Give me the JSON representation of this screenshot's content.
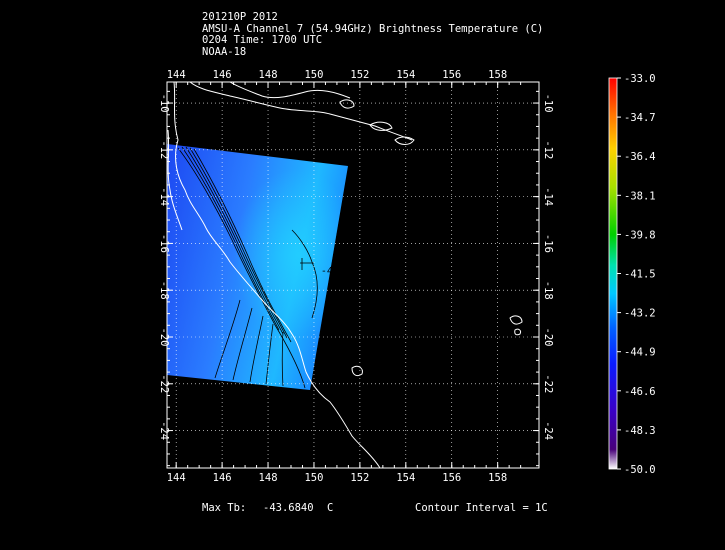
{
  "header": {
    "line1": "201210P 2012",
    "line2": "AMSU-A Channel 7 (54.94GHz) Brightness Temperature (C)",
    "line3": "0204 Time: 1700 UTC",
    "line4": "NOAA-18"
  },
  "footer": {
    "max_tb_label": "Max Tb:",
    "max_tb_value": "-43.6840",
    "max_tb_unit": "C",
    "contour_interval": "Contour Interval = 1C"
  },
  "map": {
    "lon_ticks": [
      "144",
      "146",
      "148",
      "150",
      "152",
      "154",
      "156",
      "158"
    ],
    "lat_ticks_left": [
      "-10",
      "-12",
      "-14",
      "-16",
      "-18",
      "-20",
      "-22",
      "-24"
    ],
    "lat_ticks_right": [
      "-10",
      "-12",
      "-14",
      "-16",
      "-18",
      "-20",
      "-22",
      "-24"
    ],
    "lon_values": [
      144,
      146,
      148,
      150,
      152,
      154,
      156,
      158
    ],
    "lat_values": [
      -10,
      -12,
      -14,
      -16,
      -18,
      -20,
      -22,
      -24
    ],
    "lon_range": [
      143.6,
      159.8
    ],
    "lat_range": [
      -9.1,
      -25.6
    ],
    "contour_label": "-44",
    "contour_label_lon": 150.3,
    "contour_label_lat": -17.3,
    "grid": true
  },
  "colorbar": {
    "labels": [
      "-33.0",
      "-34.7",
      "-36.4",
      "-38.1",
      "-39.8",
      "-41.5",
      "-43.2",
      "-44.9",
      "-46.6",
      "-48.3",
      "-50.0"
    ],
    "range": [
      -50.0,
      -33.0
    ],
    "colors": [
      "#ffffff",
      "#3a0060",
      "#3a00c0",
      "#0a1cff",
      "#0060ff",
      "#00c8ff",
      "#00e0a0",
      "#00d000",
      "#b0e000",
      "#ffd000",
      "#ff7000",
      "#ff0000"
    ]
  },
  "colors": {
    "swath_inner": "#2a86ff",
    "swath_edge": "#1c3cf0",
    "swath_warm": "#20c4ff",
    "background": "#000000",
    "lines": "#ffffff"
  }
}
